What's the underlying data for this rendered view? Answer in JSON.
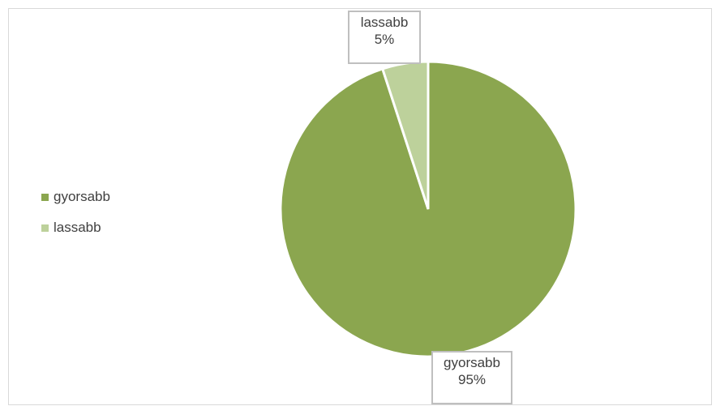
{
  "chart_data": {
    "type": "pie",
    "title": "",
    "legend_position": "left",
    "series": [
      {
        "slices": [
          {
            "label": "gyorsabb",
            "value": 95,
            "color": "#8ba64f",
            "data_label_name": "gyorsabb",
            "data_label_value": "95%"
          },
          {
            "label": "lassabb",
            "value": 5,
            "color": "#bdd19b",
            "data_label_name": "lassabb",
            "data_label_value": "5%"
          }
        ]
      }
    ]
  },
  "legend": [
    {
      "label": "gyorsabb",
      "color": "#8ba64f"
    },
    {
      "label": "lassabb",
      "color": "#bdd19b"
    }
  ]
}
